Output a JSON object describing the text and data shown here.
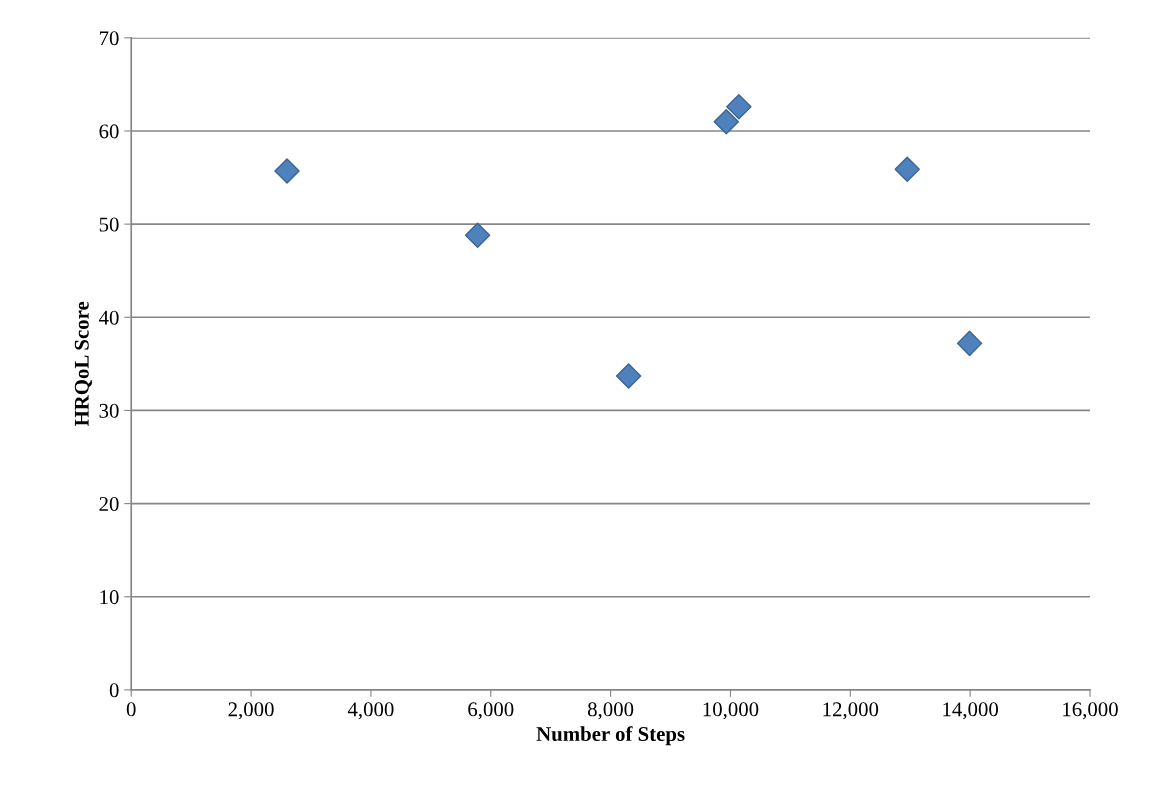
{
  "chart_data": {
    "type": "scatter",
    "xlabel": "Number of Steps",
    "ylabel": "HRQoL Score",
    "series": [
      {
        "color": "#4f81bd",
        "x": [
          2600,
          5780,
          8300,
          9930,
          10140,
          12950,
          13990
        ],
        "values": [
          55.7,
          48.8,
          33.7,
          61.0,
          62.6,
          55.9,
          37.2
        ]
      }
    ],
    "xlim": [
      0,
      16000
    ],
    "xticks": [
      {
        "value": 0,
        "label": "0"
      },
      {
        "value": 2000,
        "label": "2,000"
      },
      {
        "value": 4000,
        "label": "4,000"
      },
      {
        "value": 6000,
        "label": "6,000"
      },
      {
        "value": 8000,
        "label": "8,000"
      },
      {
        "value": 10000,
        "label": "10,000"
      },
      {
        "value": 12000,
        "label": "12,000"
      },
      {
        "value": 14000,
        "label": "14,000"
      },
      {
        "value": 16000,
        "label": "16,000"
      }
    ],
    "ylim": [
      0,
      70
    ],
    "yticks": [
      0,
      10,
      20,
      30,
      40,
      50,
      60,
      70
    ],
    "grid": "y",
    "marker": "diamond",
    "legend": false
  }
}
